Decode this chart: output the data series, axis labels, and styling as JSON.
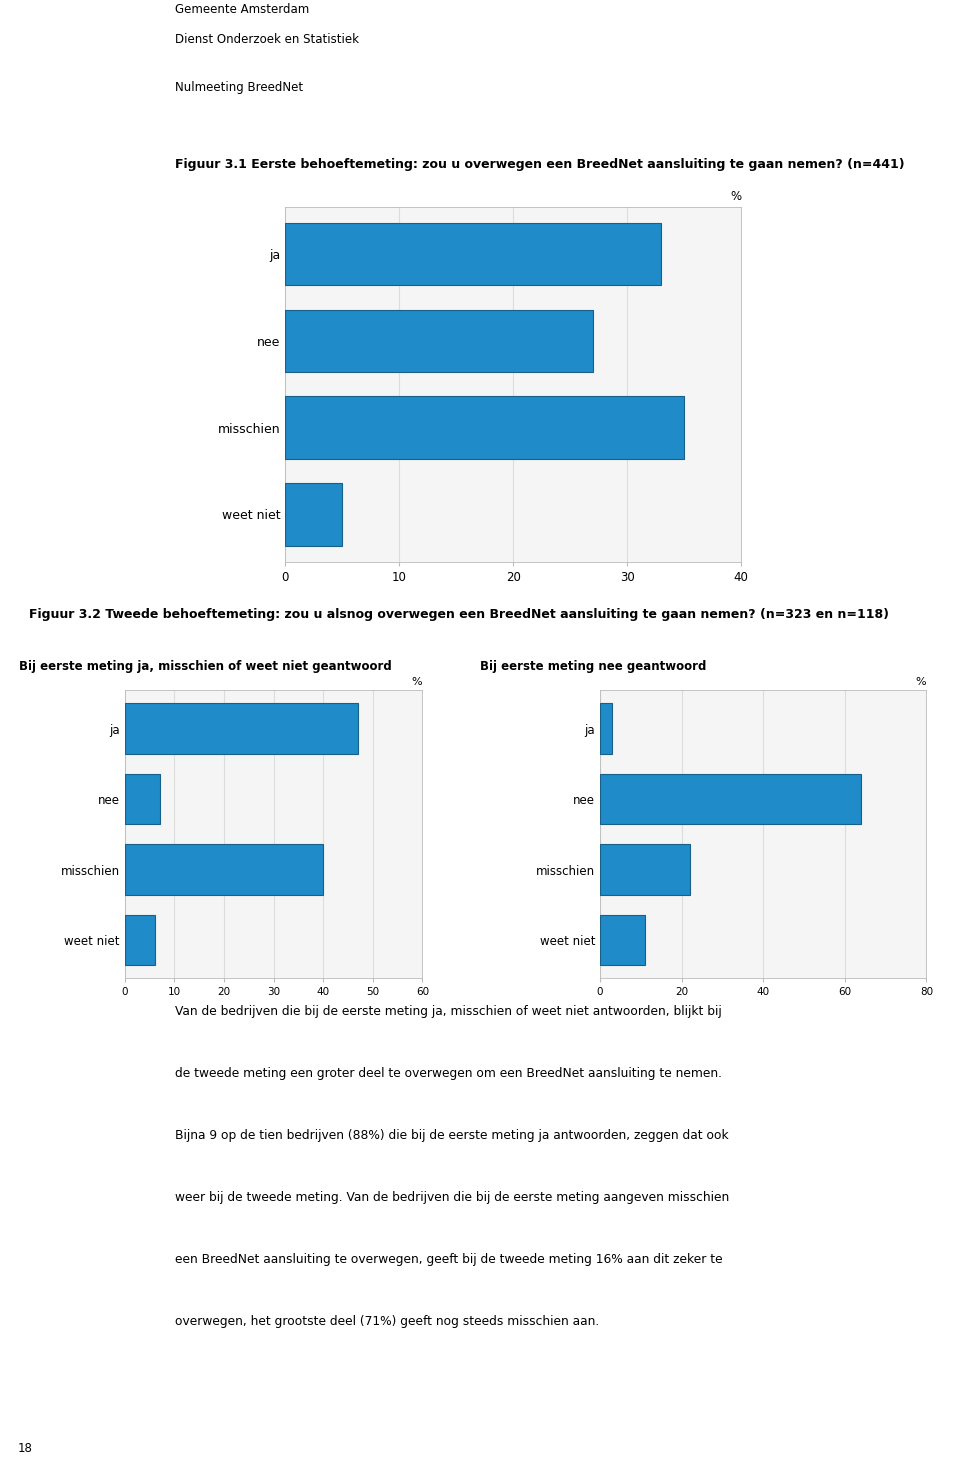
{
  "header_line1": "Gemeente Amsterdam",
  "header_line2": "Dienst Onderzoek en Statistiek",
  "header_line3": "Nulmeeting BreedNet",
  "fig1_title": "Figuur 3.1 Eerste behoeftemeting: zou u overwegen een BreedNet aansluiting te gaan nemen? (n=441)",
  "fig1_categories": [
    "ja",
    "nee",
    "misschien",
    "weet niet"
  ],
  "fig1_values": [
    33,
    27,
    35,
    5
  ],
  "fig1_xlim": [
    0,
    40
  ],
  "fig1_xticks": [
    0,
    10,
    20,
    30,
    40
  ],
  "fig2_title": "Figuur 3.2 Tweede behoeftemeting: zou u alsnog overwegen een BreedNet aansluiting te gaan nemen? (n=323 en n=118)",
  "fig2a_subtitle": "Bij eerste meting ja, misschien of weet niet geantwoord",
  "fig2a_categories": [
    "ja",
    "nee",
    "misschien",
    "weet niet"
  ],
  "fig2a_values": [
    47,
    7,
    40,
    6
  ],
  "fig2a_xlim": [
    0,
    60
  ],
  "fig2a_xticks": [
    0,
    10,
    20,
    30,
    40,
    50,
    60
  ],
  "fig2b_subtitle": "Bij eerste meting nee geantwoord",
  "fig2b_categories": [
    "ja",
    "nee",
    "misschien",
    "weet niet"
  ],
  "fig2b_values": [
    3,
    64,
    22,
    11
  ],
  "fig2b_xlim": [
    0,
    80
  ],
  "fig2b_xticks": [
    0,
    20,
    40,
    60,
    80
  ],
  "bar_color": "#1F8BC8",
  "bar_edgecolor": "#17608A",
  "body_text_lines": [
    "Van de bedrijven die bij de eerste meting ja, misschien of weet niet antwoorden, blijkt bij",
    "de tweede meting een groter deel te overwegen om een BreedNet aansluiting te nemen.",
    "Bijna 9 op de tien bedrijven (88%) die bij de eerste meting ja antwoorden, zeggen dat ook",
    "weer bij de tweede meting. Van de bedrijven die bij de eerste meting aangeven misschien",
    "een BreedNet aansluiting te overwegen, geeft bij de tweede meting 16% aan dit zeker te",
    "overwegen, het grootste deel (71%) geeft nog steeds misschien aan."
  ],
  "page_number": "18",
  "background_color": "#FFFFFF",
  "grid_color": "#DDDDDD",
  "chart_bg": "#F5F5F5"
}
